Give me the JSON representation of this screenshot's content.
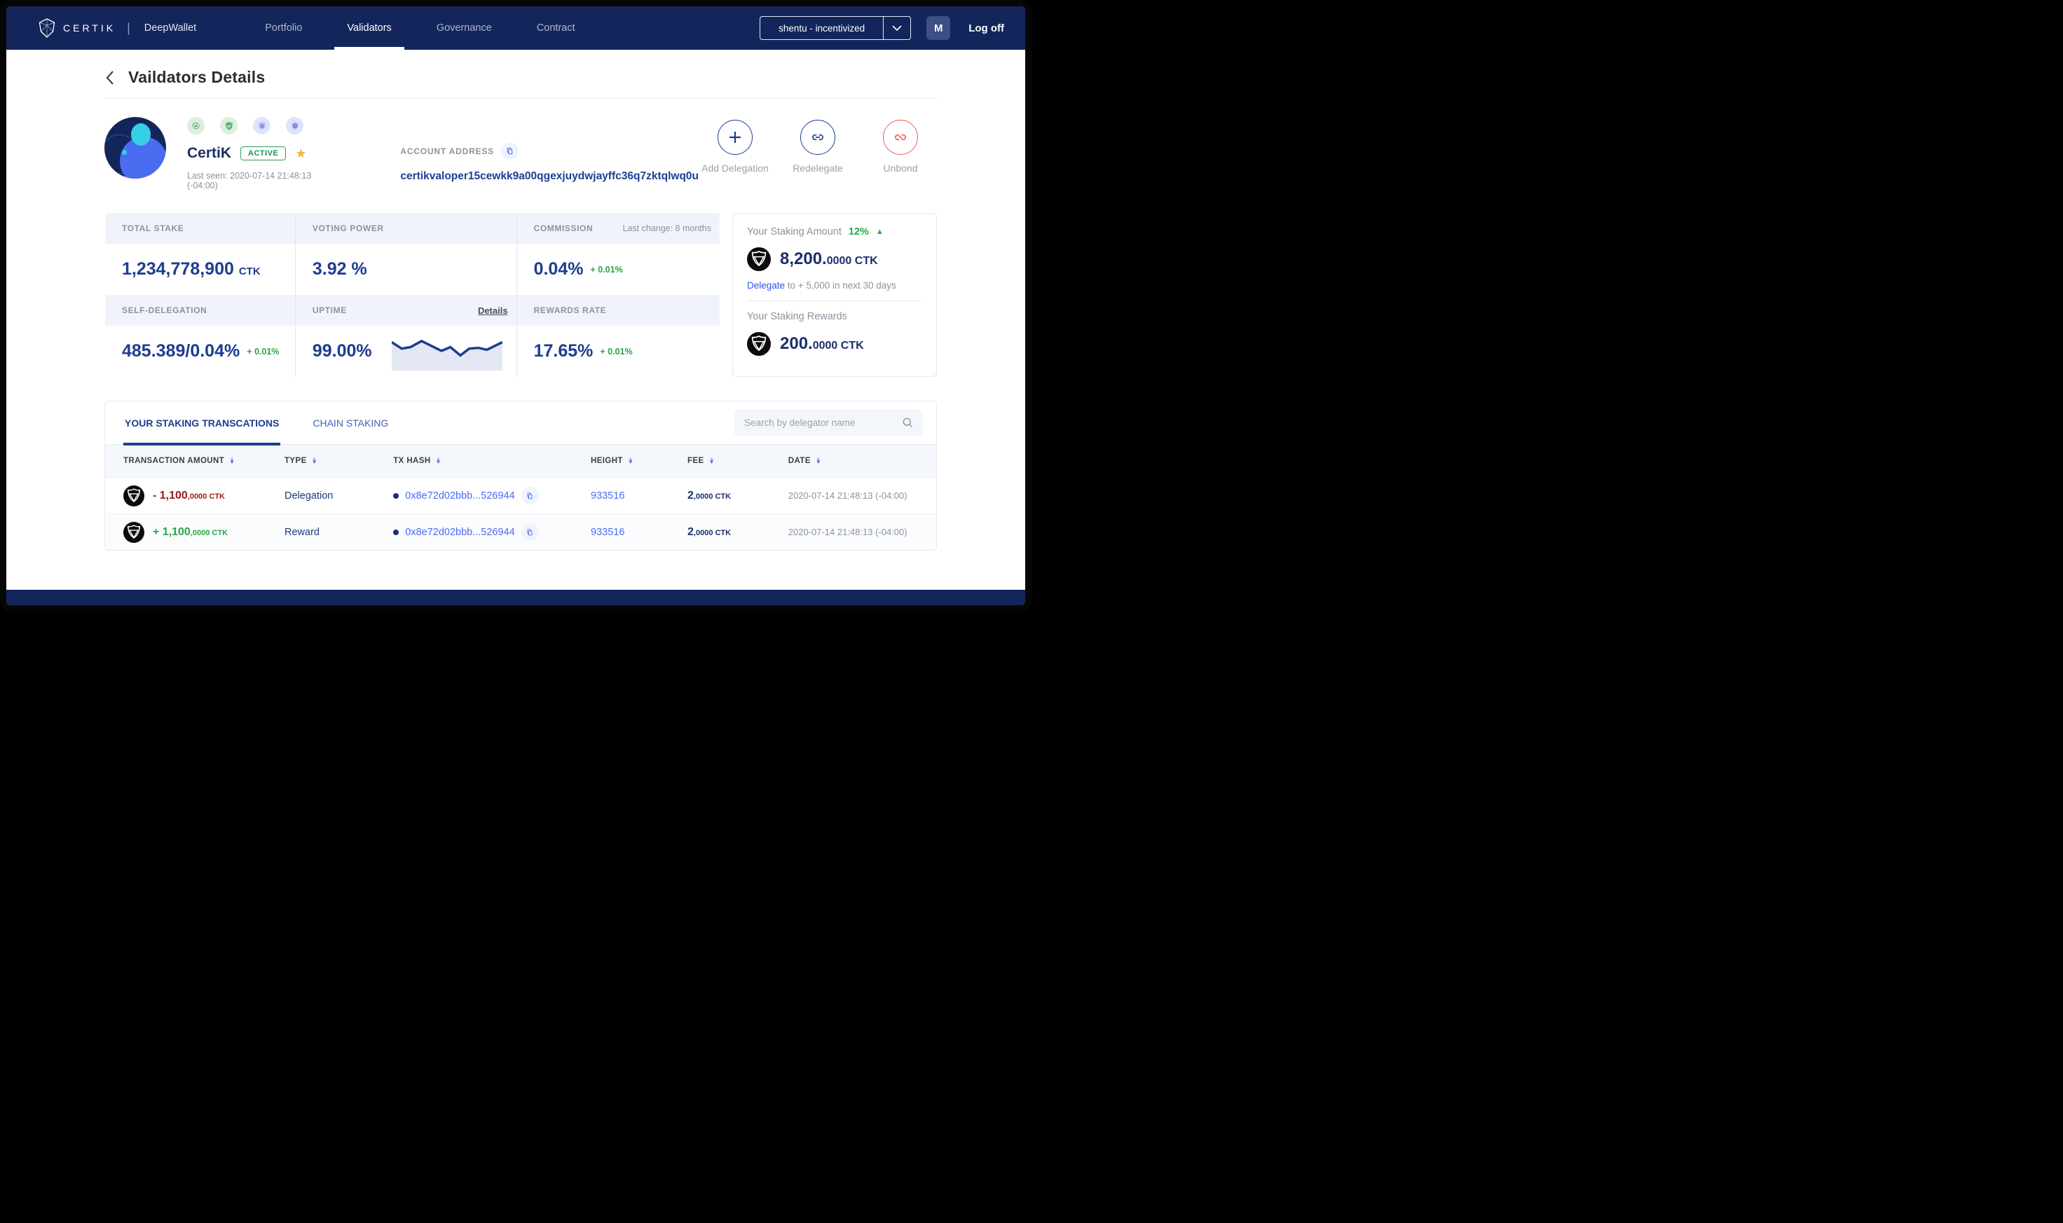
{
  "nav": {
    "brand": "CERTIK",
    "product": "DeepWallet",
    "tabs": [
      {
        "label": "Portfolio",
        "active": false
      },
      {
        "label": "Validators",
        "active": true
      },
      {
        "label": "Governance",
        "active": false
      },
      {
        "label": "Contract",
        "active": false
      }
    ],
    "network_selector": "shentu - incentivized",
    "avatar_initial": "M",
    "logoff_label": "Log off"
  },
  "page": {
    "title": "Vaildators Details"
  },
  "validator": {
    "name": "CertiK",
    "status": "ACTIVE",
    "last_seen": "Last seen: 2020-07-14 21:48:13 (-04:00)",
    "account_address_label": "ACCOUNT ADDRESS",
    "account_address": "certikvaloper15cewkk9a00qgexjuydwjayffc36q7zktqlwq0u",
    "badge_icons": [
      "sync-check-icon",
      "shield-check-icon",
      "shield-waves-icon",
      "shield-cube-icon"
    ]
  },
  "actions": {
    "add_delegation": "Add Delegation",
    "redelegate": "Redelegate",
    "unbond": "Unbond"
  },
  "stats": {
    "total_stake": {
      "label": "TOTAL STAKE",
      "value": "1,234,778,900",
      "unit": "CTK"
    },
    "voting_power": {
      "label": "VOTING POWER",
      "value": "3.92 %"
    },
    "commission": {
      "label": "COMMISSION",
      "note": "Last change: 8 months",
      "value": "0.04%",
      "delta": "+ 0.01%"
    },
    "self_delegation": {
      "label": "SELF-DELEGATION",
      "value": "485.389/0.04%",
      "delta": "+ 0.01%"
    },
    "uptime": {
      "label": "UPTIME",
      "details_label": "Details",
      "value": "99.00%",
      "sparkline": [
        [
          0,
          25
        ],
        [
          9,
          42
        ],
        [
          17,
          38
        ],
        [
          27,
          22
        ],
        [
          36,
          35
        ],
        [
          45,
          48
        ],
        [
          53,
          38
        ],
        [
          62,
          60
        ],
        [
          70,
          42
        ],
        [
          78,
          40
        ],
        [
          86,
          45
        ],
        [
          100,
          25
        ]
      ]
    },
    "rewards_rate": {
      "label": "REWARDS RATE",
      "value": "17.65%",
      "delta": "+ 0.01%"
    }
  },
  "staking_panel": {
    "amount_label": "Your Staking Amount",
    "amount_change": "12%",
    "amount_main": "8,200.",
    "amount_sub": "0000 CTK",
    "delegate_link": "Delegate",
    "delegate_rest": " to + 5,000 in next 30 days",
    "rewards_label": "Your Staking Rewards",
    "rewards_main": "200.",
    "rewards_sub": "0000 CTK"
  },
  "transactions": {
    "tabs": [
      {
        "label": "YOUR STAKING TRANSCATIONS",
        "active": true
      },
      {
        "label": "CHAIN STAKING",
        "active": false
      }
    ],
    "search_placeholder": "Search by delegator name",
    "columns": [
      "TRANSACTION AMOUNT",
      "TYPE",
      "TX HASH",
      "HEIGHT",
      "FEE",
      "DATE"
    ],
    "rows": [
      {
        "amount_main": "- 1,100",
        "amount_sub": ",0000 CTK",
        "direction": "negative",
        "type": "Delegation",
        "tx_hash": "0x8e72d02bbb...526944",
        "height": "933516",
        "fee_main": "2",
        "fee_sub": ",0000 CTK",
        "date": "2020-07-14 21:48:13 (-04:00)"
      },
      {
        "amount_main": "+ 1,100",
        "amount_sub": ",0000 CTK",
        "direction": "positive",
        "type": "Reward",
        "tx_hash": "0x8e72d02bbb...526944",
        "height": "933516",
        "fee_main": "2",
        "fee_sub": ",0000 CTK",
        "date": "2020-07-14 21:48:13 (-04:00)"
      }
    ]
  },
  "colors": {
    "navbar": "#13265b",
    "primary_navy": "#1e3d8f",
    "link_blue": "#4a6cf7",
    "green": "#27a844",
    "red": "#f25a5a",
    "amount_red": "#9e1b1b"
  }
}
